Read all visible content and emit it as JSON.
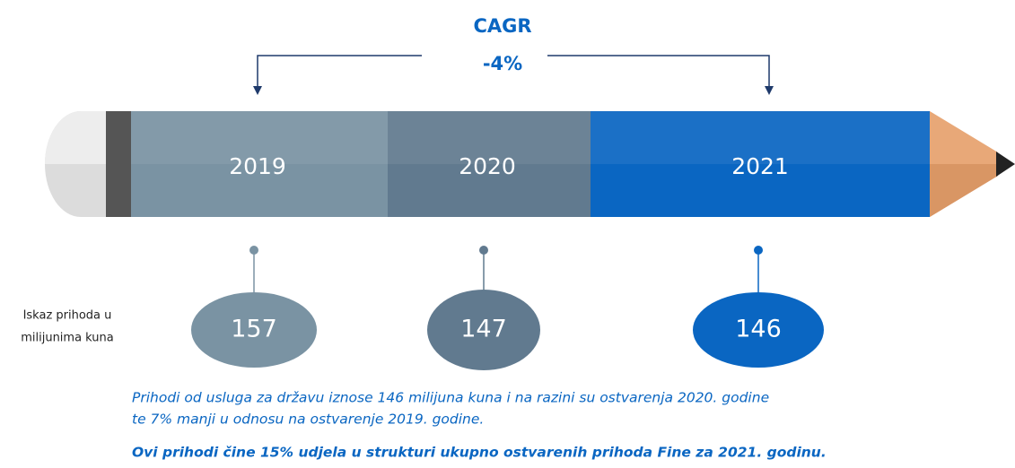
{
  "cagr": {
    "title": "CAGR",
    "value": "-4%"
  },
  "segments": [
    {
      "label": "2019",
      "value": "157",
      "color": "#7a93a3"
    },
    {
      "label": "2020",
      "value": "147",
      "color": "#617a8f"
    },
    {
      "label": "2021",
      "value": "146",
      "color": "#0a66c2"
    }
  ],
  "unit_note": [
    "Iskaz prihoda u",
    "milijunima kuna"
  ],
  "notes": [
    "Prihodi od usluga za državu iznose 146 milijuna kuna i na razini su ostvarenja 2020. godine",
    "te 7% manji u odnosu na ostvarenje 2019. godine.",
    "Ovi prihodi čine 15% udjela u strukturi ukupno ostvarenih prihoda Fine za 2021. godinu."
  ]
}
